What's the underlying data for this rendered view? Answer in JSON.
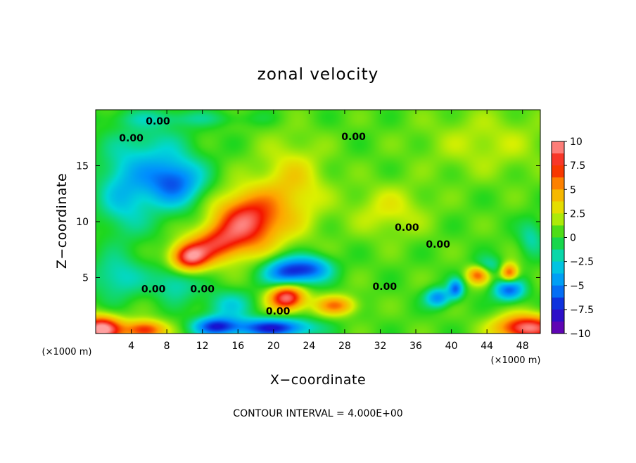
{
  "chart_data": {
    "type": "heatmap",
    "title": "zonal velocity",
    "xlabel": "X−coordinate",
    "ylabel": "Z−coordinate",
    "x_unit": "(×1000 m)",
    "y_unit": "(×1000 m)",
    "xlim": [
      0,
      50
    ],
    "ylim": [
      0,
      20
    ],
    "x_ticks": [
      4,
      8,
      12,
      16,
      20,
      24,
      28,
      32,
      36,
      40,
      44,
      48
    ],
    "x_tick_labels": [
      "4",
      "8",
      "12",
      "16",
      "20",
      "24",
      "28",
      "32",
      "36",
      "40",
      "44",
      "48"
    ],
    "y_ticks": [
      5,
      10,
      15
    ],
    "y_tick_labels": [
      "5",
      "10",
      "15"
    ],
    "colorbar": {
      "min": -10,
      "max": 10,
      "ticks": [
        10,
        7.5,
        5,
        2.5,
        0,
        -2.5,
        -5,
        -7.5,
        -10
      ],
      "tick_labels": [
        "10",
        "7.5",
        "5",
        "2.5",
        "0",
        "−2.5",
        "−5",
        "−7.5",
        "−10"
      ]
    },
    "contour_interval": 4,
    "contour_label_text": "0.00",
    "contour_labels": [
      {
        "x": 7,
        "y": 19.0
      },
      {
        "x": 4,
        "y": 17.5
      },
      {
        "x": 29,
        "y": 17.6
      },
      {
        "x": 35,
        "y": 9.5
      },
      {
        "x": 38.5,
        "y": 8.0
      },
      {
        "x": 6.5,
        "y": 4.0
      },
      {
        "x": 12,
        "y": 4.0
      },
      {
        "x": 20.5,
        "y": 2.0
      },
      {
        "x": 32.5,
        "y": 4.2
      }
    ],
    "features": [
      {
        "x": 17,
        "y": 10,
        "value": 8,
        "sx": 2.6,
        "sy": 1.8
      },
      {
        "x": 13.5,
        "y": 8,
        "value": 5.5,
        "sx": 2.0,
        "sy": 1.1
      },
      {
        "x": 10.5,
        "y": 6.8,
        "value": 8.5,
        "sx": 1.5,
        "sy": 0.9
      },
      {
        "x": 21.5,
        "y": 3.2,
        "value": 9,
        "sx": 1.4,
        "sy": 0.8
      },
      {
        "x": 0.6,
        "y": 0.4,
        "value": 10,
        "sx": 1.6,
        "sy": 0.8
      },
      {
        "x": 5.5,
        "y": 0.3,
        "value": 7,
        "sx": 1.6,
        "sy": 0.6
      },
      {
        "x": 48.5,
        "y": 0.5,
        "value": 9,
        "sx": 2.4,
        "sy": 0.8
      },
      {
        "x": 43,
        "y": 5.3,
        "value": 6,
        "sx": 0.9,
        "sy": 0.6
      },
      {
        "x": 46.5,
        "y": 5.4,
        "value": 6.5,
        "sx": 0.7,
        "sy": 0.6
      },
      {
        "x": 27,
        "y": 2.5,
        "value": 5,
        "sx": 1.6,
        "sy": 0.6
      },
      {
        "x": 22,
        "y": 13,
        "value": 3,
        "sx": 2.6,
        "sy": 2.8
      },
      {
        "x": 33,
        "y": 11,
        "value": 2,
        "sx": 3.0,
        "sy": 1.6
      },
      {
        "x": 9,
        "y": 13.5,
        "value": -5,
        "sx": 2.2,
        "sy": 1.4
      },
      {
        "x": 6,
        "y": 15,
        "value": -3,
        "sx": 3.5,
        "sy": 3.0
      },
      {
        "x": 3,
        "y": 12,
        "value": -2.5,
        "sx": 2.0,
        "sy": 2.5
      },
      {
        "x": 2.5,
        "y": 5,
        "value": -3,
        "sx": 2.2,
        "sy": 1.4
      },
      {
        "x": 9,
        "y": 4.5,
        "value": -3,
        "sx": 1.8,
        "sy": 1.2
      },
      {
        "x": 21.5,
        "y": 5.5,
        "value": -7,
        "sx": 1.8,
        "sy": 0.9
      },
      {
        "x": 24.5,
        "y": 5.8,
        "value": -5,
        "sx": 1.6,
        "sy": 0.8
      },
      {
        "x": 20,
        "y": 0.5,
        "value": -8,
        "sx": 3.0,
        "sy": 0.6
      },
      {
        "x": 13.5,
        "y": 0.6,
        "value": -7,
        "sx": 1.8,
        "sy": 0.6
      },
      {
        "x": 15,
        "y": 2.5,
        "value": -3,
        "sx": 2.0,
        "sy": 1.0
      },
      {
        "x": 38.5,
        "y": 3.2,
        "value": -5.5,
        "sx": 1.0,
        "sy": 0.6
      },
      {
        "x": 40.5,
        "y": 4.0,
        "value": -6,
        "sx": 0.6,
        "sy": 0.6
      },
      {
        "x": 46.5,
        "y": 3.9,
        "value": -6.5,
        "sx": 1.2,
        "sy": 0.7
      },
      {
        "x": 49,
        "y": 8.5,
        "value": -2.5,
        "sx": 1.0,
        "sy": 1.2
      },
      {
        "x": 44,
        "y": 6.0,
        "value": -3,
        "sx": 1.2,
        "sy": 0.6
      },
      {
        "x": 10,
        "y": 19.2,
        "value": -1.5,
        "sx": 6,
        "sy": 0.5
      },
      {
        "x": 44,
        "y": 17,
        "value": 1.5,
        "sx": 5,
        "sy": 2
      }
    ],
    "footer": "CONTOUR INTERVAL = 4.000E+00"
  }
}
